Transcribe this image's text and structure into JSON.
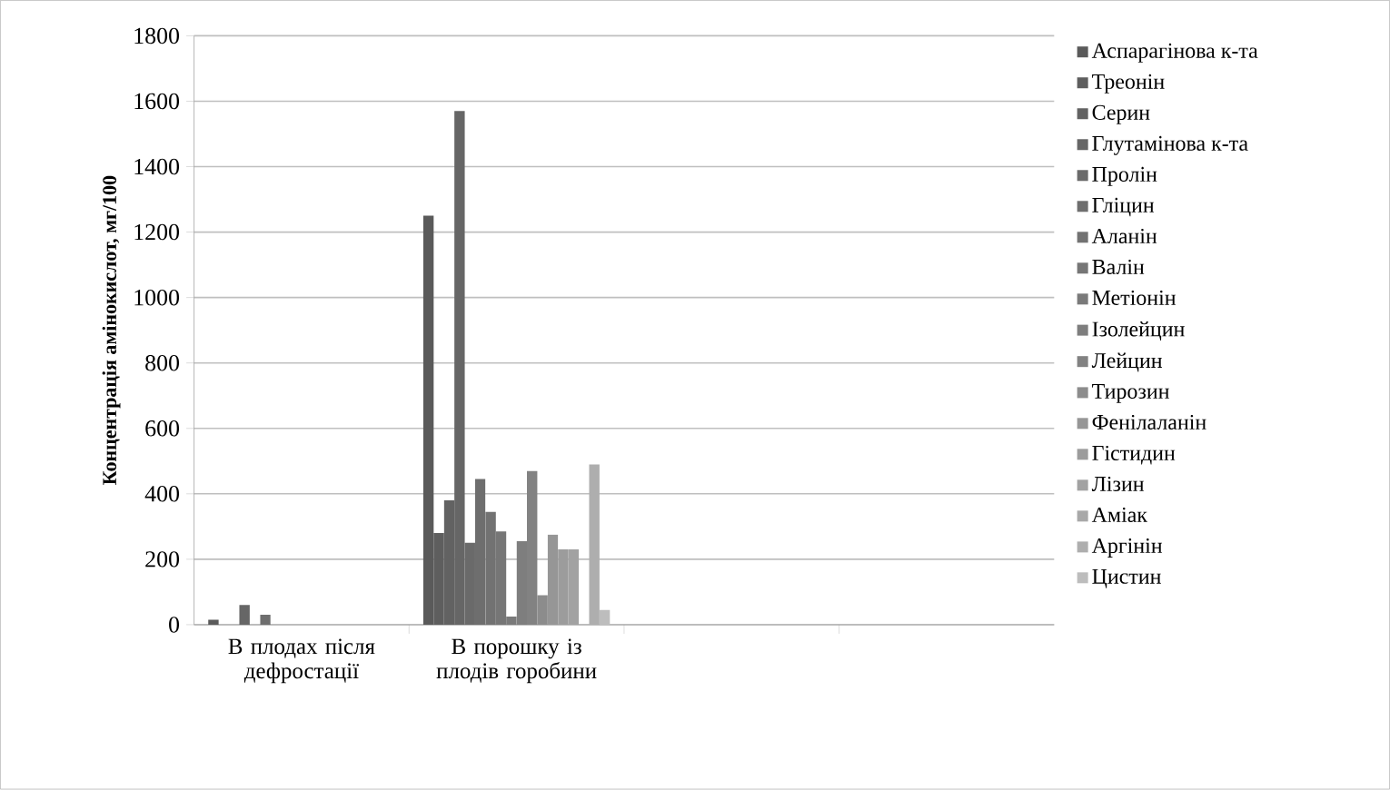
{
  "chart_data": {
    "type": "bar",
    "ylabel": "Концентрація амінокислот, мг/100",
    "categories": [
      "В плодах після дефростації",
      "В порошку із плодів горобини",
      null,
      null
    ],
    "ylim": [
      0,
      1800
    ],
    "yticks": [
      0,
      200,
      400,
      600,
      800,
      1000,
      1200,
      1400,
      1600,
      1800
    ],
    "grid": "y",
    "legend": "right",
    "series": [
      {
        "name": "Аспарагінова к-та",
        "color": "#5a5a5a",
        "values": [
          15,
          1250,
          null,
          null
        ]
      },
      {
        "name": "Треонін",
        "color": "#5e5e5e",
        "values": [
          null,
          280,
          null,
          null
        ]
      },
      {
        "name": "Серин",
        "color": "#626262",
        "values": [
          null,
          380,
          null,
          null
        ]
      },
      {
        "name": "Глутамінова к-та",
        "color": "#666666",
        "values": [
          60,
          1570,
          null,
          null
        ]
      },
      {
        "name": "Пролін",
        "color": "#6a6a6a",
        "values": [
          null,
          250,
          null,
          null
        ]
      },
      {
        "name": "Гліцин",
        "color": "#6e6e6e",
        "values": [
          30,
          445,
          null,
          null
        ]
      },
      {
        "name": "Аланін",
        "color": "#727272",
        "values": [
          null,
          345,
          null,
          null
        ]
      },
      {
        "name": "Валін",
        "color": "#767676",
        "values": [
          null,
          285,
          null,
          null
        ]
      },
      {
        "name": "Метіонін",
        "color": "#7a7a7a",
        "values": [
          null,
          25,
          null,
          null
        ]
      },
      {
        "name": "Ізолейцин",
        "color": "#7e7e7e",
        "values": [
          null,
          255,
          null,
          null
        ]
      },
      {
        "name": "Лейцин",
        "color": "#828282",
        "values": [
          null,
          470,
          null,
          null
        ]
      },
      {
        "name": "Тирозин",
        "color": "#8c8c8c",
        "values": [
          null,
          90,
          null,
          null
        ]
      },
      {
        "name": "Фенілаланін",
        "color": "#969696",
        "values": [
          null,
          275,
          null,
          null
        ]
      },
      {
        "name": "Гістидин",
        "color": "#9c9c9c",
        "values": [
          null,
          230,
          null,
          null
        ]
      },
      {
        "name": "Лізин",
        "color": "#a2a2a2",
        "values": [
          null,
          230,
          null,
          null
        ]
      },
      {
        "name": "Аміак",
        "color": "#a8a8a8",
        "values": [
          null,
          null,
          null,
          null
        ]
      },
      {
        "name": "Аргінін",
        "color": "#aeaeae",
        "values": [
          null,
          490,
          null,
          null
        ]
      },
      {
        "name": "Цистин",
        "color": "#bdbdbd",
        "values": [
          null,
          45,
          null,
          null
        ]
      }
    ]
  }
}
